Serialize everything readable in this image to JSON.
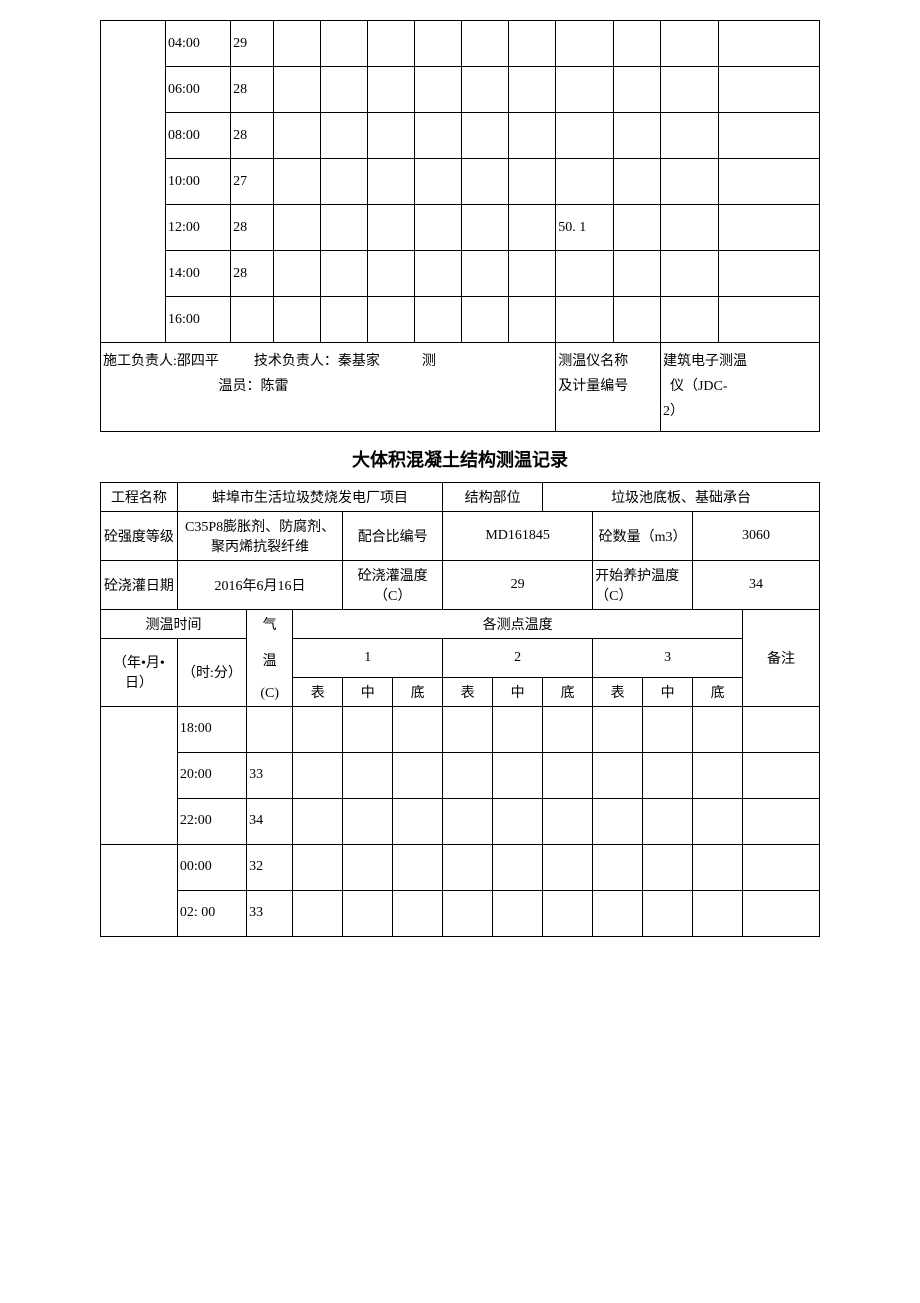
{
  "table1": {
    "rows": [
      {
        "date": "",
        "time": "04:00",
        "temp": "29",
        "p1s": "",
        "p1m": "",
        "p1b": "",
        "p2s": "",
        "p2m": "",
        "p2b": "",
        "p3s": "",
        "p3m": "",
        "p3b": "",
        "note": ""
      },
      {
        "date": "",
        "time": "06:00",
        "temp": "28",
        "p1s": "",
        "p1m": "",
        "p1b": "",
        "p2s": "",
        "p2m": "",
        "p2b": "",
        "p3s": "",
        "p3m": "",
        "p3b": "",
        "note": ""
      },
      {
        "date": "",
        "time": "08:00",
        "temp": "28",
        "p1s": "",
        "p1m": "",
        "p1b": "",
        "p2s": "",
        "p2m": "",
        "p2b": "",
        "p3s": "",
        "p3m": "",
        "p3b": "",
        "note": ""
      },
      {
        "date": "",
        "time": "10:00",
        "temp": "27",
        "p1s": "",
        "p1m": "",
        "p1b": "",
        "p2s": "",
        "p2m": "",
        "p2b": "",
        "p3s": "",
        "p3m": "",
        "p3b": "",
        "note": ""
      },
      {
        "date": "",
        "time": "12:00",
        "temp": "28",
        "p1s": "",
        "p1m": "",
        "p1b": "",
        "p2s": "",
        "p2m": "",
        "p2b": "",
        "p3s": "50. 1",
        "p3m": "",
        "p3b": "",
        "note": ""
      },
      {
        "date": "",
        "time": "14:00",
        "temp": "28",
        "p1s": "",
        "p1m": "",
        "p1b": "",
        "p2s": "",
        "p2m": "",
        "p2b": "",
        "p3s": "",
        "p3m": "",
        "p3b": "",
        "note": ""
      },
      {
        "date": "",
        "time": "16:00",
        "temp": "",
        "p1s": "",
        "p1m": "",
        "p1b": "",
        "p2s": "",
        "p2m": "",
        "p2b": "",
        "p3s": "",
        "p3m": "",
        "p3b": "",
        "note": ""
      }
    ],
    "footer": {
      "left": "施工负责人:邵四平",
      "mid1": "技术负责人：秦基家",
      "mid2": "测",
      "mid3": "温员：陈雷",
      "instr_label1": "测温仪名称",
      "instr_label2": "及计量编号",
      "instr_val1": "建筑电子测温",
      "instr_val2": "仪（JDC-",
      "instr_val3": "2）"
    }
  },
  "title": "大体积混凝土结构测温记录",
  "table2": {
    "header": {
      "proj_label": "工程名称",
      "proj_val": "蚌埠市生活垃圾焚烧发电厂项目",
      "struct_label": "结构部位",
      "struct_val": "垃圾池底板、基础承台",
      "grade_label": "砼强度等级",
      "grade_val": "C35P8膨胀剂、防腐剂、聚丙烯抗裂纤维",
      "mix_label": "配合比编号",
      "mix_val": "MD161845",
      "qty_label": "砼数量（m3）",
      "qty_val": "3060",
      "pour_date_label": "砼浇灌日期",
      "pour_date_val": "2016年6月16日",
      "pour_temp_label": "砼浇灌温度（C）",
      "pour_temp_val": "29",
      "cure_temp_label": "开始养护温度（C）",
      "cure_temp_val": "34",
      "time_label": "测温时间",
      "air_temp_label1": "气",
      "air_temp_label2": "温",
      "air_temp_label3": "(C)",
      "points_label": "各测点温度",
      "date_col": "（年•月•日）",
      "time_col": "（时:分）",
      "p1": "1",
      "p2": "2",
      "p3": "3",
      "surf": "表",
      "mid": "中",
      "bot": "底",
      "note": "备注"
    },
    "rows": [
      {
        "date": "",
        "time": "18:00",
        "temp": "",
        "p1s": "",
        "p1m": "",
        "p1b": "",
        "p2s": "",
        "p2m": "",
        "p2b": "",
        "p3s": "",
        "p3m": "",
        "p3b": "",
        "note": ""
      },
      {
        "date": "",
        "time": "20:00",
        "temp": "33",
        "p1s": "",
        "p1m": "",
        "p1b": "",
        "p2s": "",
        "p2m": "",
        "p2b": "",
        "p3s": "",
        "p3m": "",
        "p3b": "",
        "note": ""
      },
      {
        "date": "",
        "time": "22:00",
        "temp": "34",
        "p1s": "",
        "p1m": "",
        "p1b": "",
        "p2s": "",
        "p2m": "",
        "p2b": "",
        "p3s": "",
        "p3m": "",
        "p3b": "",
        "note": ""
      },
      {
        "date": "",
        "time": "00:00",
        "temp": "32",
        "p1s": "",
        "p1m": "",
        "p1b": "",
        "p2s": "",
        "p2m": "",
        "p2b": "",
        "p3s": "",
        "p3m": "",
        "p3b": "",
        "note": ""
      },
      {
        "date": "",
        "time": "02: 00",
        "temp": "33",
        "p1s": "",
        "p1m": "",
        "p1b": "",
        "p2s": "",
        "p2m": "",
        "p2b": "",
        "p3s": "",
        "p3m": "",
        "p3b": "",
        "note": ""
      }
    ]
  },
  "colors": {
    "border": "#000000",
    "text": "#000000",
    "bg": "#ffffff"
  }
}
